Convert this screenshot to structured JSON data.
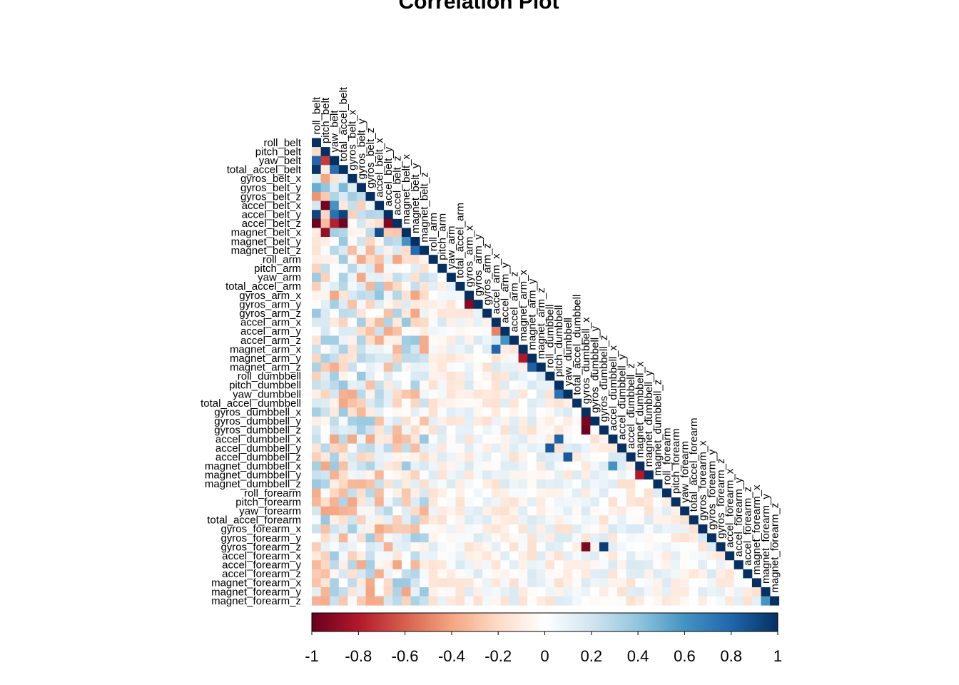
{
  "chart_data": {
    "type": "heatmap",
    "title": "Correlation Plot",
    "variables": [
      "roll_belt",
      "pitch_belt",
      "yaw_belt",
      "total_accel_belt",
      "gyros_belt_x",
      "gyros_belt_y",
      "gyros_belt_z",
      "accel_belt_x",
      "accel_belt_y",
      "accel_belt_z",
      "magnet_belt_x",
      "magnet_belt_y",
      "magnet_belt_z",
      "roll_arm",
      "pitch_arm",
      "yaw_arm",
      "total_accel_arm",
      "gyros_arm_x",
      "gyros_arm_y",
      "gyros_arm_z",
      "accel_arm_x",
      "accel_arm_y",
      "accel_arm_z",
      "magnet_arm_x",
      "magnet_arm_y",
      "magnet_arm_z",
      "roll_dumbbell",
      "pitch_dumbbell",
      "yaw_dumbbell",
      "total_accel_dumbbell",
      "gyros_dumbbell_x",
      "gyros_dumbbell_y",
      "gyros_dumbbell_z",
      "accel_dumbbell_x",
      "accel_dumbbell_y",
      "accel_dumbbell_z",
      "magnet_dumbbell_x",
      "magnet_dumbbell_y",
      "magnet_dumbbell_z",
      "roll_forearm",
      "pitch_forearm",
      "yaw_forearm",
      "total_accel_forearm",
      "gyros_forearm_x",
      "gyros_forearm_y",
      "gyros_forearm_z",
      "accel_forearm_x",
      "accel_forearm_y",
      "accel_forearm_z",
      "magnet_forearm_x",
      "magnet_forearm_y",
      "magnet_forearm_z"
    ],
    "layout": "lower-triangle",
    "diagonal": 1,
    "strong_correlations": [
      {
        "row": "pitch_belt",
        "col": "roll_belt",
        "value": -0.2
      },
      {
        "row": "yaw_belt",
        "col": "roll_belt",
        "value": 0.8
      },
      {
        "row": "yaw_belt",
        "col": "pitch_belt",
        "value": -0.7
      },
      {
        "row": "total_accel_belt",
        "col": "roll_belt",
        "value": 0.98
      },
      {
        "row": "total_accel_belt",
        "col": "pitch_belt",
        "value": -0.1
      },
      {
        "row": "total_accel_belt",
        "col": "yaw_belt",
        "value": 0.76
      },
      {
        "row": "gyros_belt_x",
        "col": "pitch_belt",
        "value": -0.4
      },
      {
        "row": "gyros_belt_y",
        "col": "roll_belt",
        "value": 0.5
      },
      {
        "row": "gyros_belt_y",
        "col": "total_accel_belt",
        "value": 0.45
      },
      {
        "row": "gyros_belt_z",
        "col": "roll_belt",
        "value": -0.45
      },
      {
        "row": "gyros_belt_z",
        "col": "gyros_belt_x",
        "value": 0.35
      },
      {
        "row": "accel_belt_x",
        "col": "pitch_belt",
        "value": -0.97
      },
      {
        "row": "accel_belt_x",
        "col": "yaw_belt",
        "value": 0.6
      },
      {
        "row": "accel_belt_y",
        "col": "roll_belt",
        "value": 0.92
      },
      {
        "row": "accel_belt_y",
        "col": "yaw_belt",
        "value": 0.75
      },
      {
        "row": "accel_belt_y",
        "col": "total_accel_belt",
        "value": 0.93
      },
      {
        "row": "accel_belt_z",
        "col": "roll_belt",
        "value": -0.99
      },
      {
        "row": "accel_belt_z",
        "col": "yaw_belt",
        "value": -0.78
      },
      {
        "row": "accel_belt_z",
        "col": "total_accel_belt",
        "value": -0.97
      },
      {
        "row": "accel_belt_z",
        "col": "accel_belt_y",
        "value": -0.93
      },
      {
        "row": "magnet_belt_x",
        "col": "pitch_belt",
        "value": -0.88
      },
      {
        "row": "magnet_belt_x",
        "col": "accel_belt_x",
        "value": 0.89
      },
      {
        "row": "magnet_belt_y",
        "col": "magnet_belt_x",
        "value": 0.6
      },
      {
        "row": "magnet_belt_z",
        "col": "magnet_belt_y",
        "value": 0.78
      },
      {
        "row": "gyros_arm_y",
        "col": "gyros_arm_x",
        "value": -0.92
      },
      {
        "row": "accel_arm_y",
        "col": "accel_arm_x",
        "value": -0.5
      },
      {
        "row": "accel_arm_z",
        "col": "accel_arm_y",
        "value": 0.6
      },
      {
        "row": "magnet_arm_x",
        "col": "accel_arm_x",
        "value": 0.8
      },
      {
        "row": "magnet_arm_y",
        "col": "magnet_arm_x",
        "value": -0.8
      },
      {
        "row": "magnet_arm_z",
        "col": "magnet_arm_y",
        "value": 0.82
      },
      {
        "row": "yaw_dumbbell",
        "col": "pitch_dumbbell",
        "value": 0.75
      },
      {
        "row": "gyros_dumbbell_y",
        "col": "gyros_dumbbell_x",
        "value": -0.95
      },
      {
        "row": "gyros_dumbbell_z",
        "col": "gyros_dumbbell_x",
        "value": -0.98
      },
      {
        "row": "accel_dumbbell_x",
        "col": "pitch_dumbbell",
        "value": 0.81
      },
      {
        "row": "accel_dumbbell_y",
        "col": "roll_dumbbell",
        "value": 0.85
      },
      {
        "row": "accel_dumbbell_z",
        "col": "yaw_dumbbell",
        "value": 0.85
      },
      {
        "row": "magnet_dumbbell_x",
        "col": "accel_dumbbell_x",
        "value": 0.6
      },
      {
        "row": "magnet_dumbbell_y",
        "col": "magnet_dumbbell_x",
        "value": -0.8
      },
      {
        "row": "gyros_forearm_z",
        "col": "gyros_dumbbell_x",
        "value": -0.93
      },
      {
        "row": "gyros_forearm_z",
        "col": "gyros_dumbbell_z",
        "value": 0.95
      },
      {
        "row": "magnet_forearm_z",
        "col": "magnet_forearm_y",
        "value": 0.6
      }
    ],
    "colorbar": {
      "ticks": [
        "-1",
        "-0.8",
        "-0.6",
        "-0.4",
        "-0.2",
        "0",
        "0.2",
        "0.4",
        "0.6",
        "0.8",
        "1"
      ],
      "range": [
        -1,
        1
      ],
      "orientation": "horizontal"
    },
    "color_scale": [
      "#67001f",
      "#b2182b",
      "#d6604d",
      "#f4a582",
      "#fddbc7",
      "#ffffff",
      "#d1e5f0",
      "#92c5de",
      "#4393c3",
      "#2166ac",
      "#053061"
    ]
  }
}
